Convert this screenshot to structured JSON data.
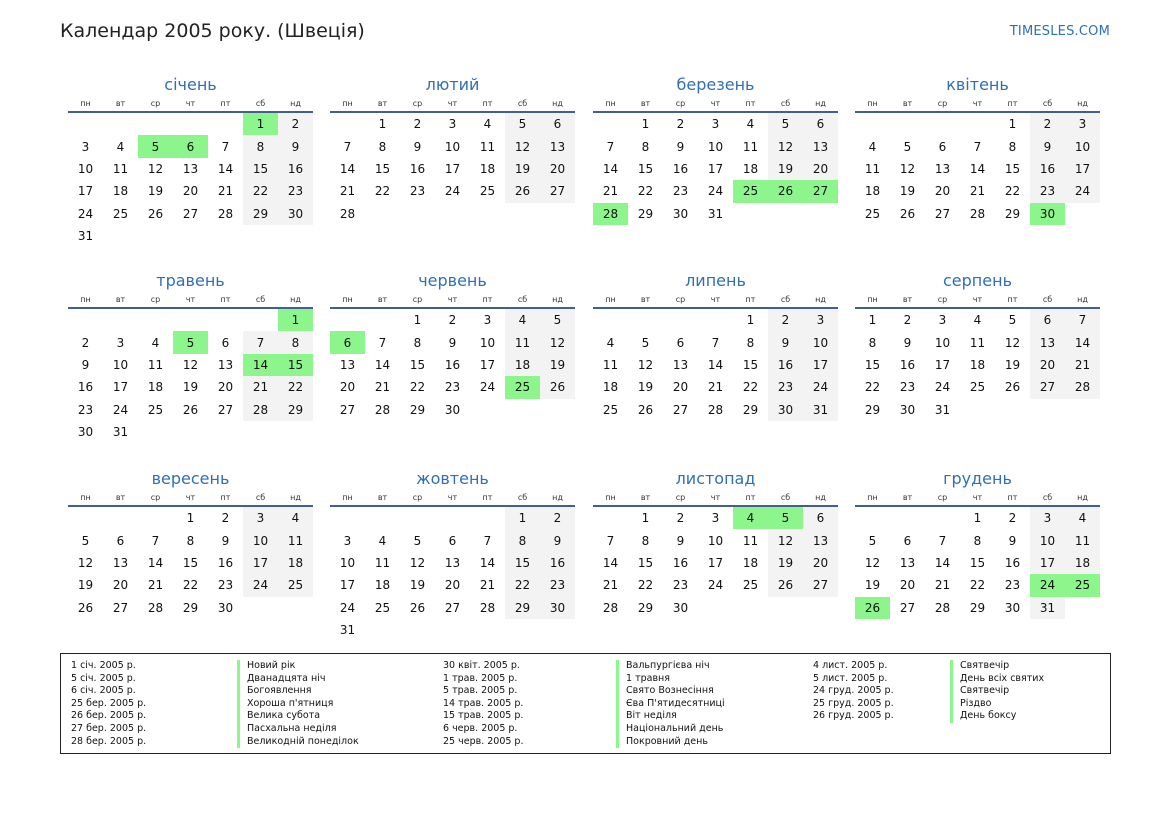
{
  "title": "Календар 2005 року. (Швеція)",
  "brand": "TIMESLES.COM",
  "weekdays": [
    "пн",
    "вт",
    "ср",
    "чт",
    "пт",
    "сб",
    "нд"
  ],
  "colors": {
    "accent": "#2f6fb5",
    "holiday": "#8cf58c",
    "weekend": "#f3f3f3",
    "rule": "#40608f"
  },
  "months": [
    {
      "name": "січень",
      "offset": 5,
      "days": 31,
      "holidays": [
        1,
        5,
        6
      ]
    },
    {
      "name": "лютий",
      "offset": 1,
      "days": 28,
      "holidays": []
    },
    {
      "name": "березень",
      "offset": 1,
      "days": 31,
      "holidays": [
        25,
        26,
        27,
        28
      ]
    },
    {
      "name": "квітень",
      "offset": 4,
      "days": 30,
      "holidays": [
        30
      ]
    },
    {
      "name": "травень",
      "offset": 6,
      "days": 31,
      "holidays": [
        1,
        5,
        14,
        15
      ]
    },
    {
      "name": "червень",
      "offset": 2,
      "days": 30,
      "holidays": [
        6,
        25
      ]
    },
    {
      "name": "липень",
      "offset": 4,
      "days": 31,
      "holidays": []
    },
    {
      "name": "серпень",
      "offset": 0,
      "days": 31,
      "holidays": []
    },
    {
      "name": "вересень",
      "offset": 3,
      "days": 30,
      "holidays": []
    },
    {
      "name": "жовтень",
      "offset": 5,
      "days": 31,
      "holidays": []
    },
    {
      "name": "листопад",
      "offset": 1,
      "days": 30,
      "holidays": [
        4,
        5
      ]
    },
    {
      "name": "грудень",
      "offset": 3,
      "days": 31,
      "holidays": [
        24,
        25,
        26
      ]
    }
  ],
  "legend": [
    {
      "date": "1 січ. 2005 р.",
      "name": "Новий рік"
    },
    {
      "date": "5 січ. 2005 р.",
      "name": "Дванадцята ніч"
    },
    {
      "date": "6 січ. 2005 р.",
      "name": "Богоявлення"
    },
    {
      "date": "25 бер. 2005 р.",
      "name": "Хороша п'ятниця"
    },
    {
      "date": "26 бер. 2005 р.",
      "name": "Велика субота"
    },
    {
      "date": "27 бер. 2005 р.",
      "name": "Пасхальна неділя"
    },
    {
      "date": "28 бер. 2005 р.",
      "name": "Великодній понеділок"
    },
    {
      "date": "30 квіт. 2005 р.",
      "name": "Вальпургієва ніч"
    },
    {
      "date": "1 трав. 2005 р.",
      "name": "1 травня"
    },
    {
      "date": "5 трав. 2005 р.",
      "name": "Свято Вознесіння"
    },
    {
      "date": "14 трав. 2005 р.",
      "name": "Єва П'ятидесятниці"
    },
    {
      "date": "15 трав. 2005 р.",
      "name": "Віт неділя"
    },
    {
      "date": "6 черв. 2005 р.",
      "name": "Національний день"
    },
    {
      "date": "25 черв. 2005 р.",
      "name": "Покровний день"
    },
    {
      "date": "4 лист. 2005 р.",
      "name": "Святвечір"
    },
    {
      "date": "5 лист. 2005 р.",
      "name": "День всіх святих"
    },
    {
      "date": "24 груд. 2005 р.",
      "name": "Святвечір"
    },
    {
      "date": "25 груд. 2005 р.",
      "name": "Різдво"
    },
    {
      "date": "26 груд. 2005 р.",
      "name": "День боксу"
    }
  ]
}
